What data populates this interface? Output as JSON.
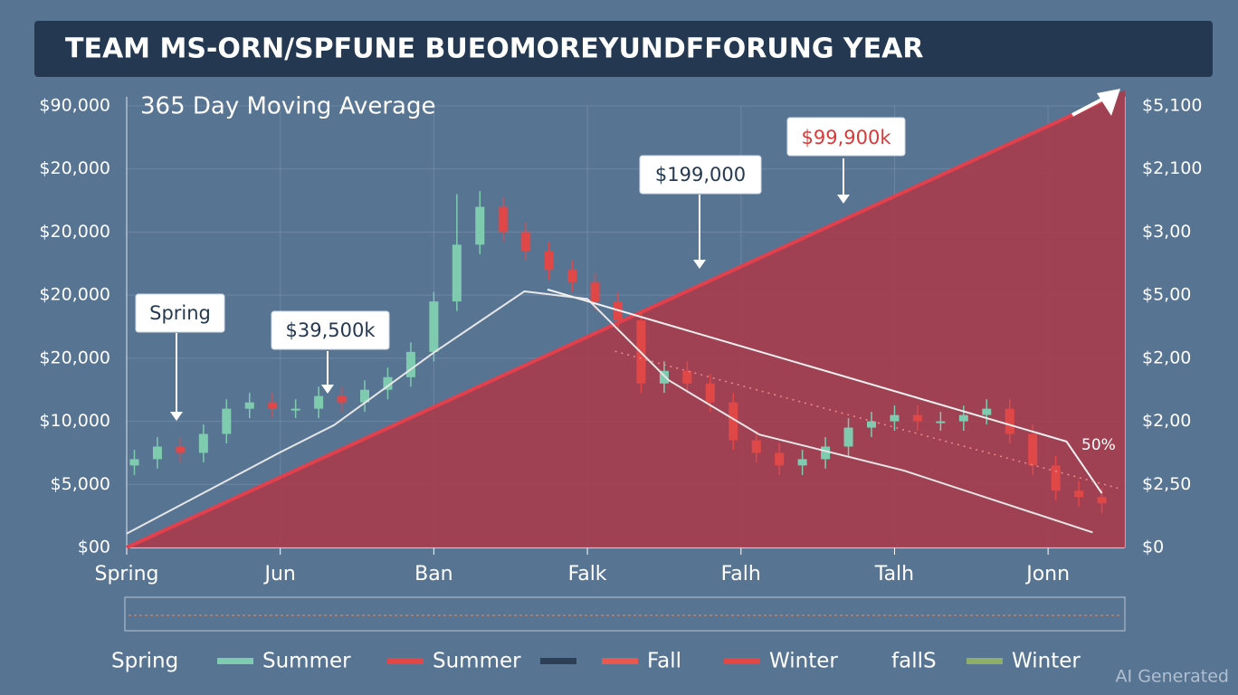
{
  "chart_data": {
    "type": "candlestick",
    "title": "TEAM MS-ORN/SPFUNE BUEOMOREYUNDFFORUNG YEAR",
    "subtitle": "365 Day Moving Average",
    "xlim": [
      0,
      6.5
    ],
    "xticks": [
      {
        "value": 0,
        "label": "Spring"
      },
      {
        "value": 1,
        "label": "Jun"
      },
      {
        "value": 2,
        "label": "Ban"
      },
      {
        "value": 3,
        "label": "Falk"
      },
      {
        "value": 4,
        "label": "Falh"
      },
      {
        "value": 5,
        "label": "Talh"
      },
      {
        "value": 6,
        "label": "Jonn"
      }
    ],
    "ylim": [
      0,
      7
    ],
    "yticks": [
      {
        "value": 7,
        "label": "$90,000"
      },
      {
        "value": 6,
        "label": "$20,000"
      },
      {
        "value": 5,
        "label": "$20,000"
      },
      {
        "value": 4,
        "label": "$20,000"
      },
      {
        "value": 3,
        "label": "$20,000"
      },
      {
        "value": 2,
        "label": "$10,000"
      },
      {
        "value": 1,
        "label": "$5,000"
      },
      {
        "value": 0,
        "label": "$00"
      }
    ],
    "y2lim": [
      0,
      7
    ],
    "y2ticks": [
      {
        "value": 7,
        "label": "$5,100"
      },
      {
        "value": 6,
        "label": "$2,100"
      },
      {
        "value": 5,
        "label": "$3,00"
      },
      {
        "value": 4,
        "label": "$5,00"
      },
      {
        "value": 3,
        "label": "$2,00"
      },
      {
        "value": 2,
        "label": "$2,00"
      },
      {
        "value": 1,
        "label": "$2,50"
      },
      {
        "value": 0,
        "label": "$0"
      }
    ],
    "grid": true,
    "candles": {
      "up_color": "#7fcbb0",
      "down_color": "#e04848",
      "x": [
        0.05,
        0.2,
        0.35,
        0.5,
        0.65,
        0.8,
        0.95,
        1.1,
        1.25,
        1.4,
        1.55,
        1.7,
        1.85,
        2,
        2.15,
        2.3,
        2.45,
        2.6,
        2.75,
        2.9,
        3.05,
        3.2,
        3.35,
        3.5,
        3.65,
        3.8,
        3.95,
        4.1,
        4.25,
        4.4,
        4.55,
        4.7,
        4.85,
        5,
        5.15,
        5.3,
        5.45,
        5.6,
        5.75,
        5.9,
        6.05,
        6.2,
        6.35
      ],
      "open": [
        1.3,
        1.4,
        1.6,
        1.5,
        1.8,
        2.2,
        2.3,
        2.2,
        2.2,
        2.4,
        2.3,
        2.5,
        2.7,
        3.1,
        3.9,
        4.8,
        5.4,
        5.0,
        4.7,
        4.4,
        4.2,
        3.9,
        3.6,
        2.6,
        2.8,
        2.6,
        2.3,
        1.7,
        1.5,
        1.3,
        1.4,
        1.6,
        1.9,
        2.0,
        2.1,
        2.0,
        2.0,
        2.1,
        2.2,
        1.8,
        1.3,
        0.9,
        0.8
      ],
      "high": [
        1.55,
        1.75,
        1.75,
        1.95,
        2.35,
        2.45,
        2.45,
        2.35,
        2.55,
        2.55,
        2.65,
        2.85,
        3.25,
        4.05,
        5.6,
        5.65,
        5.55,
        5.15,
        4.85,
        4.55,
        4.35,
        4.05,
        3.75,
        2.95,
        2.95,
        2.75,
        2.45,
        1.85,
        1.65,
        1.55,
        1.75,
        2.05,
        2.15,
        2.25,
        2.25,
        2.15,
        2.25,
        2.35,
        2.35,
        1.95,
        1.45,
        1.05,
        0.95
      ],
      "low": [
        1.15,
        1.25,
        1.35,
        1.35,
        1.65,
        2.05,
        2.05,
        2.05,
        2.05,
        2.15,
        2.15,
        2.35,
        2.55,
        2.95,
        3.75,
        4.65,
        4.85,
        4.55,
        4.25,
        4.05,
        3.75,
        3.45,
        2.45,
        2.45,
        2.45,
        2.15,
        1.55,
        1.35,
        1.15,
        1.15,
        1.25,
        1.45,
        1.75,
        1.85,
        1.85,
        1.85,
        1.85,
        1.95,
        1.65,
        1.15,
        0.75,
        0.65,
        0.55
      ],
      "close": [
        1.4,
        1.6,
        1.5,
        1.8,
        2.2,
        2.3,
        2.2,
        2.2,
        2.4,
        2.3,
        2.5,
        2.7,
        3.1,
        3.9,
        4.8,
        5.4,
        5.0,
        4.7,
        4.4,
        4.2,
        3.9,
        3.6,
        2.6,
        2.8,
        2.6,
        2.3,
        1.7,
        1.5,
        1.3,
        1.4,
        1.6,
        1.9,
        2.0,
        2.1,
        2.0,
        2.0,
        2.1,
        2.2,
        1.8,
        1.3,
        0.9,
        0.8,
        0.7
      ]
    },
    "area": {
      "x": [
        0,
        6.5
      ],
      "values": [
        0,
        7.25
      ],
      "color": "#a83a4a",
      "line_color": "#e2404c"
    },
    "lines": [
      {
        "x": [
          0,
          1.0,
          1.35,
          2.0,
          2.59,
          3.0,
          3.53,
          4.12,
          5.06,
          6.29
        ],
        "values": [
          0.22,
          1.51,
          1.94,
          3.09,
          4.06,
          3.94,
          2.65,
          1.79,
          1.22,
          0.24
        ],
        "color": "#e6e6e6"
      },
      {
        "x": [
          2.74,
          6.12,
          6.35
        ],
        "values": [
          4.09,
          1.68,
          0.86
        ],
        "color": "#f0f0f0"
      },
      {
        "x": [
          3.18,
          6.47
        ],
        "values": [
          3.11,
          0.93
        ],
        "color": "#f08a8a",
        "dashed": true
      }
    ],
    "annotations": [
      "Spring",
      "$39,500k",
      "$199,000",
      "$99,900k",
      "50%"
    ],
    "legend": [
      {
        "label": "Spring"
      },
      {
        "color": "#7fcbb0",
        "label": "Summer"
      },
      {
        "color": "#e04848",
        "label": "Summer"
      },
      {
        "color": "#2e3f55"
      },
      {
        "color": "#e8584f",
        "label": "Fall"
      },
      {
        "color": "#e04848",
        "label": "Winter"
      },
      {
        "label": "fallS"
      },
      {
        "color": "#8fae6a",
        "label": "Winter"
      }
    ],
    "watermark": "AI Generated"
  }
}
